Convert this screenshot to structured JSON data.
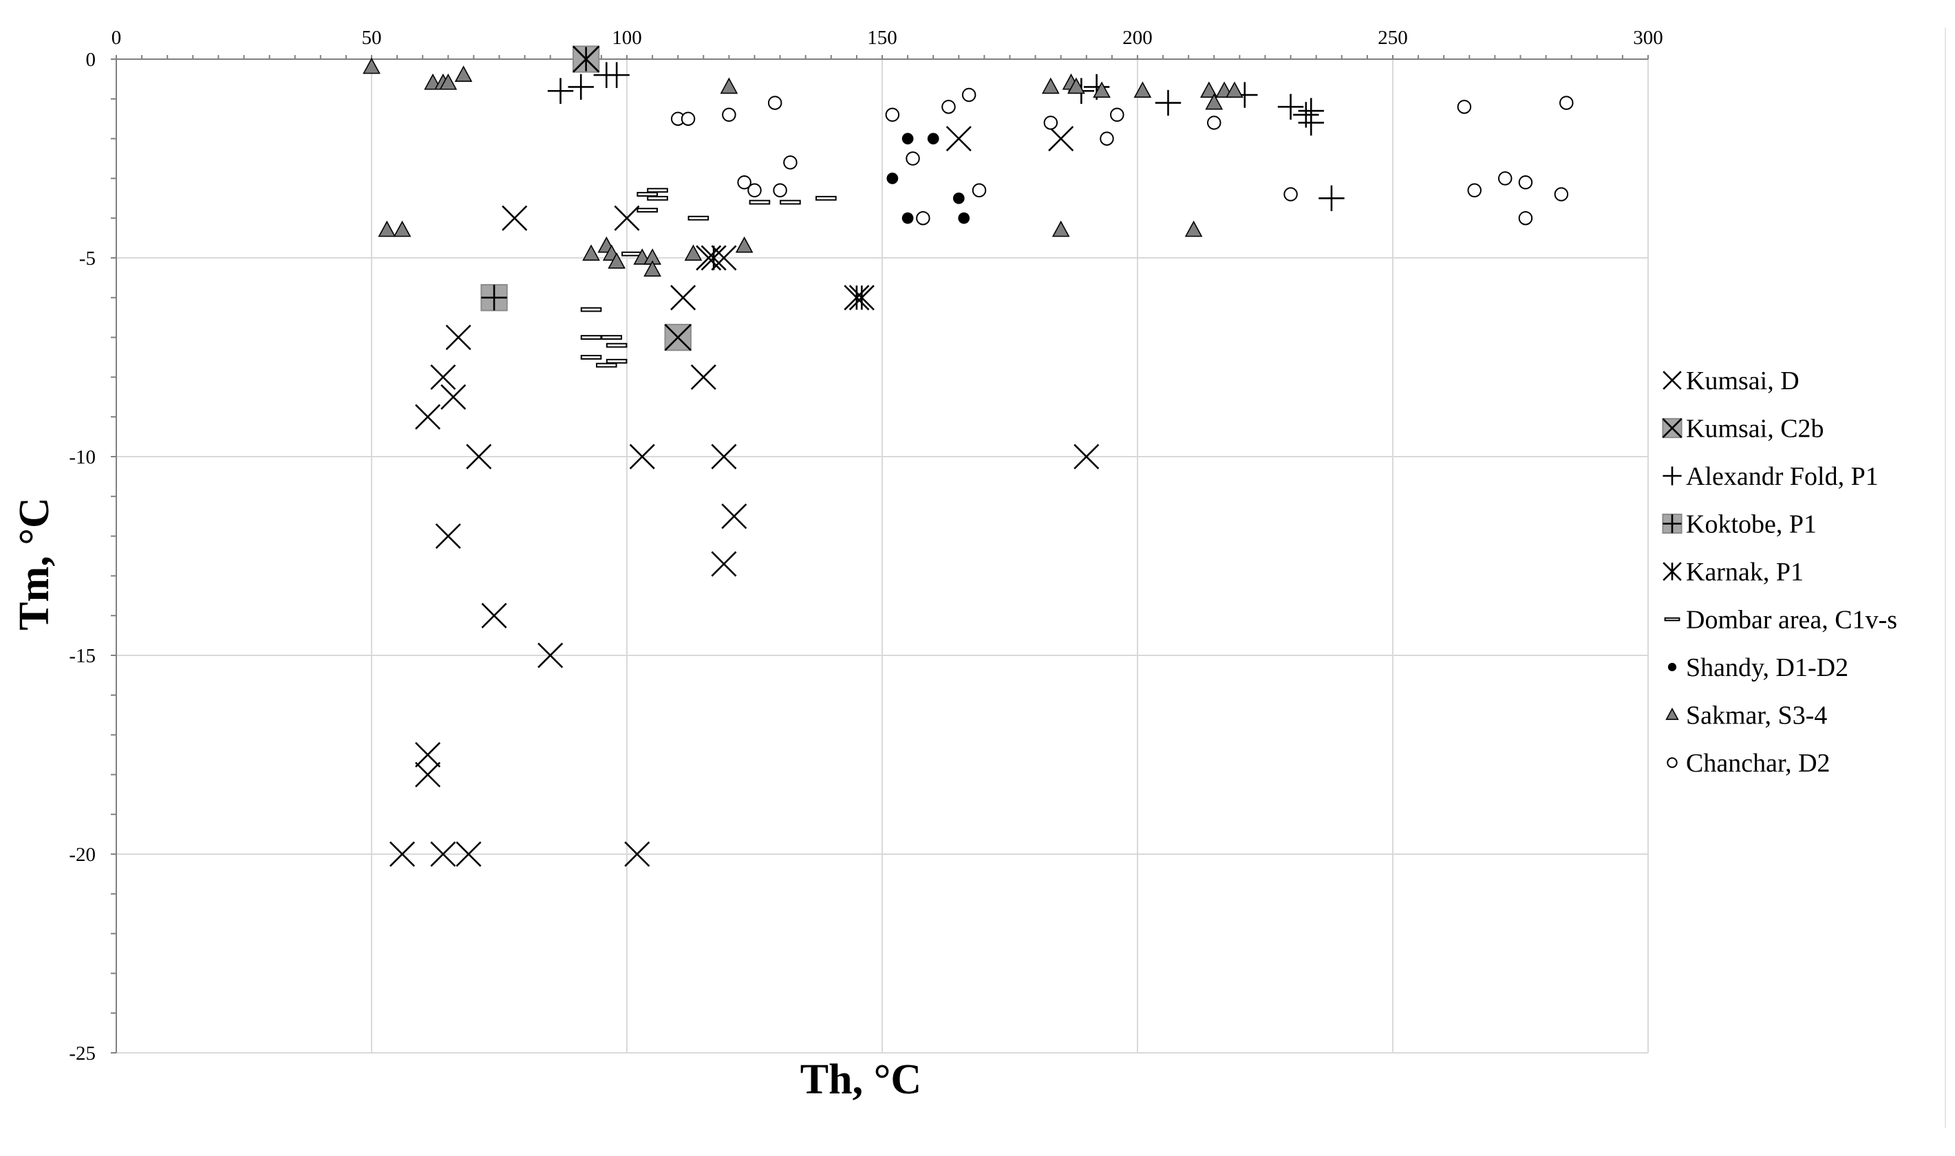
{
  "chart_data": {
    "type": "scatter",
    "title": "",
    "xlabel": "Th, °C",
    "ylabel": "Tm, °C",
    "xlim": [
      0,
      300
    ],
    "ylim": [
      -25,
      0
    ],
    "x_ticks": [
      "0",
      "50",
      "100",
      "150",
      "200",
      "250",
      "300"
    ],
    "y_ticks": [
      "0",
      "-5",
      "-10",
      "-15",
      "-20",
      "-25"
    ],
    "x_axis_position": "top",
    "grid": true,
    "legend": "right",
    "series": [
      {
        "name": "Kumsai, D",
        "marker": "x",
        "points": [
          [
            78,
            -4
          ],
          [
            100,
            -4
          ],
          [
            111,
            -6
          ],
          [
            67,
            -7
          ],
          [
            64,
            -8
          ],
          [
            66,
            -8.5
          ],
          [
            61,
            -9
          ],
          [
            115,
            -8
          ],
          [
            71,
            -10
          ],
          [
            103,
            -10
          ],
          [
            119,
            -10
          ],
          [
            121,
            -11.5
          ],
          [
            65,
            -12
          ],
          [
            119,
            -12.7
          ],
          [
            74,
            -14
          ],
          [
            85,
            -15
          ],
          [
            61,
            -17.5
          ],
          [
            61,
            -18
          ],
          [
            56,
            -20
          ],
          [
            64,
            -20
          ],
          [
            69,
            -20
          ],
          [
            102,
            -20
          ],
          [
            165,
            -2
          ],
          [
            185,
            -2
          ],
          [
            190,
            -10
          ],
          [
            116,
            -5
          ],
          [
            119,
            -5
          ]
        ]
      },
      {
        "name": "Kumsai, C2b",
        "marker": "square-x",
        "points": [
          [
            92,
            0
          ],
          [
            110,
            -7
          ]
        ]
      },
      {
        "name": "Alexandr Fold, P1",
        "marker": "plus",
        "points": [
          [
            87,
            -0.8
          ],
          [
            91,
            -0.7
          ],
          [
            96,
            -0.4
          ],
          [
            98,
            -0.4
          ],
          [
            189,
            -0.8
          ],
          [
            192,
            -0.7
          ],
          [
            206,
            -1.1
          ],
          [
            221,
            -0.9
          ],
          [
            230,
            -1.2
          ],
          [
            233,
            -1.4
          ],
          [
            234,
            -1.3
          ],
          [
            234,
            -1.6
          ],
          [
            238,
            -3.5
          ]
        ]
      },
      {
        "name": "Koktobe, P1",
        "marker": "square-plus",
        "points": [
          [
            74,
            -6
          ]
        ]
      },
      {
        "name": "Karnak, P1",
        "marker": "asterisk",
        "points": [
          [
            92,
            0
          ],
          [
            145,
            -6
          ],
          [
            146,
            -6
          ],
          [
            117,
            -5
          ]
        ]
      },
      {
        "name": "Dombar area, C1v-s",
        "marker": "dash",
        "points": [
          [
            106,
            -3.3
          ],
          [
            104,
            -3.4
          ],
          [
            106,
            -3.5
          ],
          [
            104,
            -3.8
          ],
          [
            114,
            -4
          ],
          [
            126,
            -3.6
          ],
          [
            132,
            -3.6
          ],
          [
            139,
            -3.5
          ],
          [
            93,
            -6.3
          ],
          [
            93,
            -7
          ],
          [
            97,
            -7
          ],
          [
            98,
            -7.2
          ],
          [
            93,
            -7.5
          ],
          [
            98,
            -7.6
          ],
          [
            96,
            -7.7
          ],
          [
            101,
            -4.9
          ]
        ]
      },
      {
        "name": "Shandy, D1-D2",
        "marker": "dot",
        "points": [
          [
            155,
            -2
          ],
          [
            160,
            -2
          ],
          [
            152,
            -3
          ],
          [
            165,
            -3.5
          ],
          [
            155,
            -4
          ],
          [
            166,
            -4
          ]
        ]
      },
      {
        "name": "Sakmar, S3-4",
        "marker": "triangle",
        "points": [
          [
            50,
            -0.2
          ],
          [
            62,
            -0.6
          ],
          [
            64,
            -0.6
          ],
          [
            65,
            -0.6
          ],
          [
            68,
            -0.4
          ],
          [
            120,
            -0.7
          ],
          [
            53,
            -4.3
          ],
          [
            56,
            -4.3
          ],
          [
            93,
            -4.9
          ],
          [
            96,
            -4.7
          ],
          [
            97,
            -4.9
          ],
          [
            98,
            -5.1
          ],
          [
            103,
            -5
          ],
          [
            105,
            -5
          ],
          [
            105,
            -5.3
          ],
          [
            113,
            -4.9
          ],
          [
            123,
            -4.7
          ],
          [
            183,
            -0.7
          ],
          [
            187,
            -0.6
          ],
          [
            188,
            -0.7
          ],
          [
            193,
            -0.8
          ],
          [
            201,
            -0.8
          ],
          [
            214,
            -0.8
          ],
          [
            215,
            -1.1
          ],
          [
            217,
            -0.8
          ],
          [
            219,
            -0.8
          ],
          [
            185,
            -4.3
          ],
          [
            211,
            -4.3
          ]
        ]
      },
      {
        "name": "Chanchar, D2",
        "marker": "circle",
        "points": [
          [
            110,
            -1.5
          ],
          [
            112,
            -1.5
          ],
          [
            120,
            -1.4
          ],
          [
            129,
            -1.1
          ],
          [
            123,
            -3.1
          ],
          [
            125,
            -3.3
          ],
          [
            130,
            -3.3
          ],
          [
            132,
            -2.6
          ],
          [
            152,
            -1.4
          ],
          [
            156,
            -2.5
          ],
          [
            158,
            -4
          ],
          [
            163,
            -1.2
          ],
          [
            167,
            -0.9
          ],
          [
            169,
            -3.3
          ],
          [
            183,
            -1.6
          ],
          [
            194,
            -2
          ],
          [
            196,
            -1.4
          ],
          [
            215,
            -1.6
          ],
          [
            230,
            -3.4
          ],
          [
            264,
            -1.2
          ],
          [
            266,
            -3.3
          ],
          [
            272,
            -3
          ],
          [
            276,
            -3.1
          ],
          [
            276,
            -4
          ],
          [
            283,
            -3.4
          ],
          [
            284,
            -1.1
          ]
        ]
      }
    ]
  }
}
